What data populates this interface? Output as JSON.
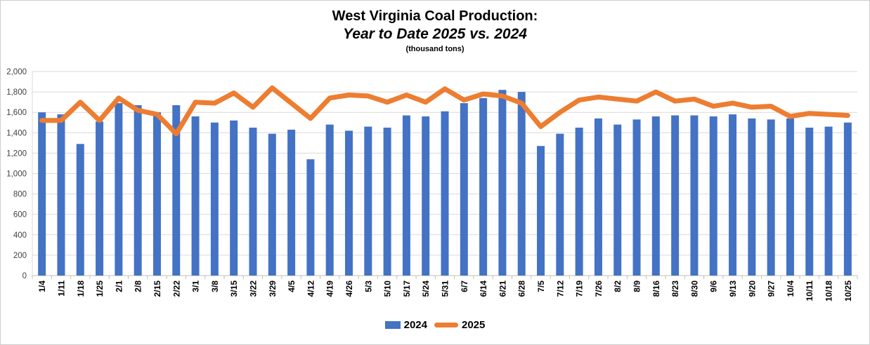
{
  "title": {
    "line1": "West Virginia Coal Production:",
    "line2": "Year to Date 2025 vs. 2024",
    "line3": "(thousand tons)"
  },
  "legend": {
    "items": [
      {
        "label": "2024",
        "marker": "bar",
        "color": "#4472C4"
      },
      {
        "label": "2025",
        "marker": "line",
        "color": "#ED7D31"
      }
    ]
  },
  "chart_data": {
    "type": "combo-bar-line",
    "title": "West Virginia Coal Production: Year to Date 2025 vs. 2024",
    "units_note": "(thousand tons)",
    "xlabel": "",
    "ylabel": "",
    "ylim": [
      0,
      2000
    ],
    "ytick_step": 200,
    "ytick_labels": [
      "0",
      "200",
      "400",
      "600",
      "800",
      "1,000",
      "1,200",
      "1,400",
      "1,600",
      "1,800",
      "2,000"
    ],
    "grid": "horizontal",
    "legend_position": "bottom",
    "categories": [
      "1/4",
      "1/11",
      "1/18",
      "1/25",
      "2/1",
      "2/8",
      "2/15",
      "2/22",
      "3/1",
      "3/8",
      "3/15",
      "3/22",
      "3/29",
      "4/5",
      "4/12",
      "4/19",
      "4/26",
      "5/3",
      "5/10",
      "5/17",
      "5/24",
      "5/31",
      "6/7",
      "6/14",
      "6/21",
      "6/28",
      "7/5",
      "7/12",
      "7/19",
      "7/26",
      "8/2",
      "8/9",
      "8/16",
      "8/23",
      "8/30",
      "9/6",
      "9/13",
      "9/20",
      "9/27",
      "10/4",
      "10/11",
      "10/18",
      "10/25"
    ],
    "series": [
      {
        "name": "2024",
        "type": "bar",
        "color": "#4472C4",
        "values": [
          1600,
          1580,
          1290,
          1510,
          1690,
          1670,
          1600,
          1670,
          1560,
          1500,
          1520,
          1450,
          1390,
          1430,
          1140,
          1480,
          1420,
          1460,
          1450,
          1570,
          1560,
          1610,
          1690,
          1740,
          1820,
          1800,
          1270,
          1390,
          1450,
          1540,
          1480,
          1530,
          1560,
          1570,
          1570,
          1560,
          1580,
          1540,
          1530,
          1540,
          1450,
          1460,
          1500
        ]
      },
      {
        "name": "2025",
        "type": "line",
        "color": "#ED7D31",
        "values": [
          1520,
          1520,
          1700,
          1520,
          1740,
          1620,
          1580,
          1390,
          1700,
          1690,
          1790,
          1650,
          1840,
          1690,
          1540,
          1740,
          1770,
          1760,
          1700,
          1770,
          1700,
          1830,
          1720,
          1780,
          1760,
          1690,
          1460,
          1600,
          1720,
          1750,
          1730,
          1710,
          1800,
          1710,
          1730,
          1660,
          1690,
          1650,
          1660,
          1560,
          1590,
          1580,
          1570
        ]
      }
    ],
    "axis_colors": {
      "gridline": "#D9D9D9",
      "axis_line": "#BFBFBF",
      "ytick_text": "#3f3f3f",
      "xtick_text": "#000000"
    }
  }
}
